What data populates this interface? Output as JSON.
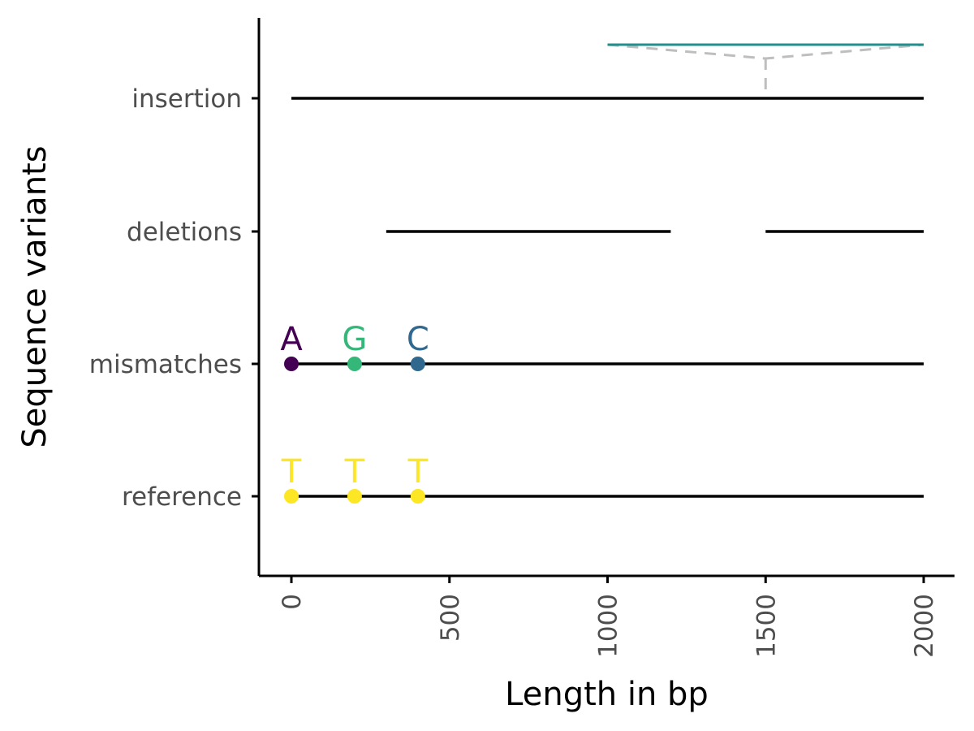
{
  "chart_data": {
    "type": "scatter",
    "xlabel": "Length in bp",
    "ylabel": "Sequence variants",
    "xlim": [
      -100,
      2100
    ],
    "x_ticks": [
      0,
      500,
      1000,
      1500,
      2000
    ],
    "x_tick_labels": [
      "0",
      "500",
      "1000",
      "1500",
      "2000"
    ],
    "categories": [
      "reference",
      "mismatches",
      "deletions",
      "insertion"
    ],
    "grid": false,
    "legend": "none",
    "segments": [
      {
        "category": "reference",
        "x_start": 0,
        "x_end": 2000
      },
      {
        "category": "mismatches",
        "x_start": 0,
        "x_end": 2000
      },
      {
        "category": "deletions",
        "x_start": 300,
        "x_end": 1200
      },
      {
        "category": "deletions",
        "x_start": 1500,
        "x_end": 2000
      },
      {
        "category": "insertion",
        "x_start": 0,
        "x_end": 2000
      }
    ],
    "points": [
      {
        "category": "reference",
        "x": 0,
        "label": "T",
        "color": "#fde725"
      },
      {
        "category": "reference",
        "x": 200,
        "label": "T",
        "color": "#fde725"
      },
      {
        "category": "reference",
        "x": 400,
        "label": "T",
        "color": "#fde725"
      },
      {
        "category": "mismatches",
        "x": 0,
        "label": "A",
        "color": "#440154"
      },
      {
        "category": "mismatches",
        "x": 200,
        "label": "G",
        "color": "#35b779"
      },
      {
        "category": "mismatches",
        "x": 400,
        "label": "C",
        "color": "#31688e"
      }
    ],
    "insertion": {
      "category": "insertion",
      "position": 1500,
      "inserted_from": 1000,
      "inserted_to": 2000,
      "segment_color": "#21908c",
      "connector_color": "#bebebe"
    }
  }
}
